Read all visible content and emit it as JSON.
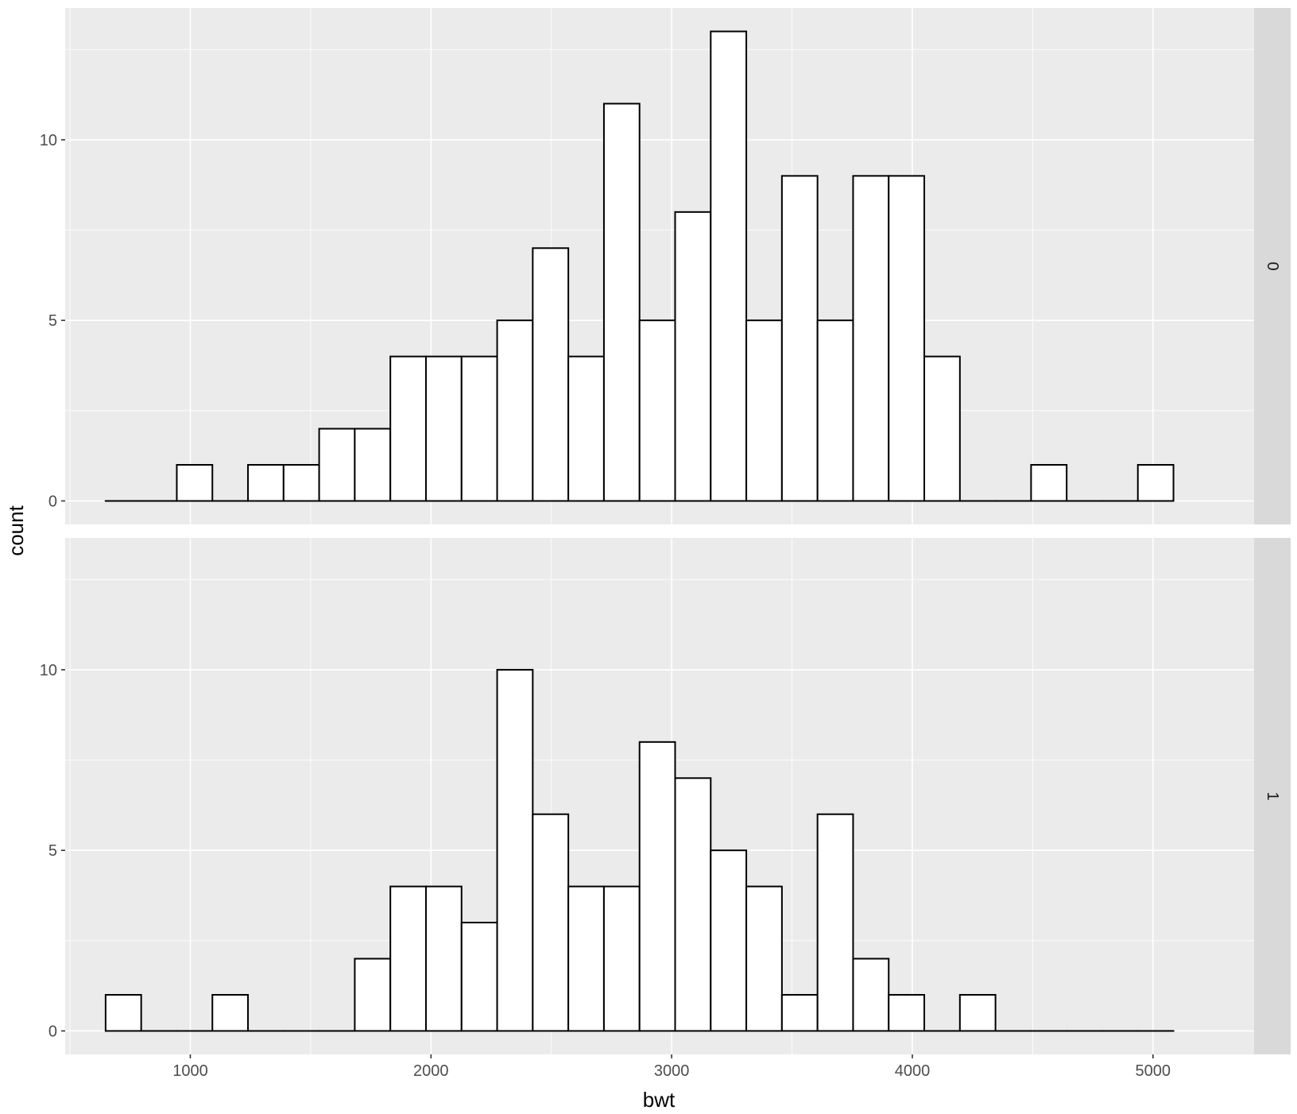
{
  "chart_data": {
    "type": "bar",
    "subtype": "faceted-histogram",
    "xlabel": "bwt",
    "ylabel": "count",
    "xlim": [
      480,
      5420
    ],
    "ylim": [
      -0.65,
      13.65
    ],
    "x_ticks": [
      1000,
      2000,
      3000,
      4000,
      5000
    ],
    "y_ticks": [
      0,
      5,
      10
    ],
    "bin_start": 648,
    "bin_width": 147.9,
    "facets": [
      {
        "strip_label": "0",
        "values": [
          0,
          0,
          1,
          0,
          1,
          1,
          2,
          2,
          4,
          4,
          4,
          5,
          7,
          4,
          11,
          5,
          8,
          13,
          5,
          9,
          5,
          9,
          9,
          4,
          0,
          0,
          1,
          0,
          0,
          1
        ]
      },
      {
        "strip_label": "1",
        "values": [
          1,
          0,
          0,
          1,
          0,
          0,
          0,
          2,
          4,
          4,
          3,
          10,
          6,
          4,
          4,
          8,
          7,
          5,
          4,
          1,
          6,
          2,
          1,
          0,
          1,
          0,
          0,
          0,
          0,
          0
        ]
      }
    ],
    "grid": true,
    "legend": "none"
  }
}
